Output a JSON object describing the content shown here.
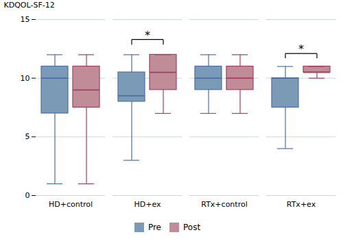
{
  "chart_data": {
    "type": "box",
    "categories": [
      "HD+control",
      "HD+ex",
      "RTx+control",
      "RTx+ex"
    ],
    "series": [
      {
        "name": "Pre",
        "color": "#7b9ab5",
        "edge_color": "#4a6fa5",
        "values": [
          {
            "whislo": 1,
            "q1": 7,
            "med": 10,
            "q3": 11,
            "whishi": 12
          },
          {
            "whislo": 3,
            "q1": 8,
            "med": 8.5,
            "q3": 10.5,
            "whishi": 12
          },
          {
            "whislo": 7,
            "q1": 9,
            "med": 10,
            "q3": 11,
            "whishi": 12
          },
          {
            "whislo": 4,
            "q1": 7.5,
            "med": 10,
            "q3": 10,
            "whishi": 11
          }
        ]
      },
      {
        "name": "Post",
        "color": "#bf8c98",
        "edge_color": "#a04060",
        "values": [
          {
            "whislo": 1,
            "q1": 7.5,
            "med": 9,
            "q3": 11,
            "whishi": 12
          },
          {
            "whislo": 7,
            "q1": 9,
            "med": 10.5,
            "q3": 12,
            "whishi": 12
          },
          {
            "whislo": 7,
            "q1": 9,
            "med": 10,
            "q3": 11,
            "whishi": 12
          },
          {
            "whislo": 10,
            "q1": 10.5,
            "med": 10.5,
            "q3": 11,
            "whishi": 11
          }
        ]
      }
    ],
    "ylabel": "KDQOL-SF-12",
    "ylim": [
      0,
      15
    ],
    "yticks": [
      0,
      5,
      10,
      15
    ],
    "grid": true,
    "legend": "bottom",
    "annotations": [
      {
        "text": "*",
        "category": "HD+ex",
        "y": 13.3,
        "drop": 0.45
      },
      {
        "text": "*",
        "category": "RTx+ex",
        "y": 12.1,
        "drop": 0.4
      }
    ]
  }
}
